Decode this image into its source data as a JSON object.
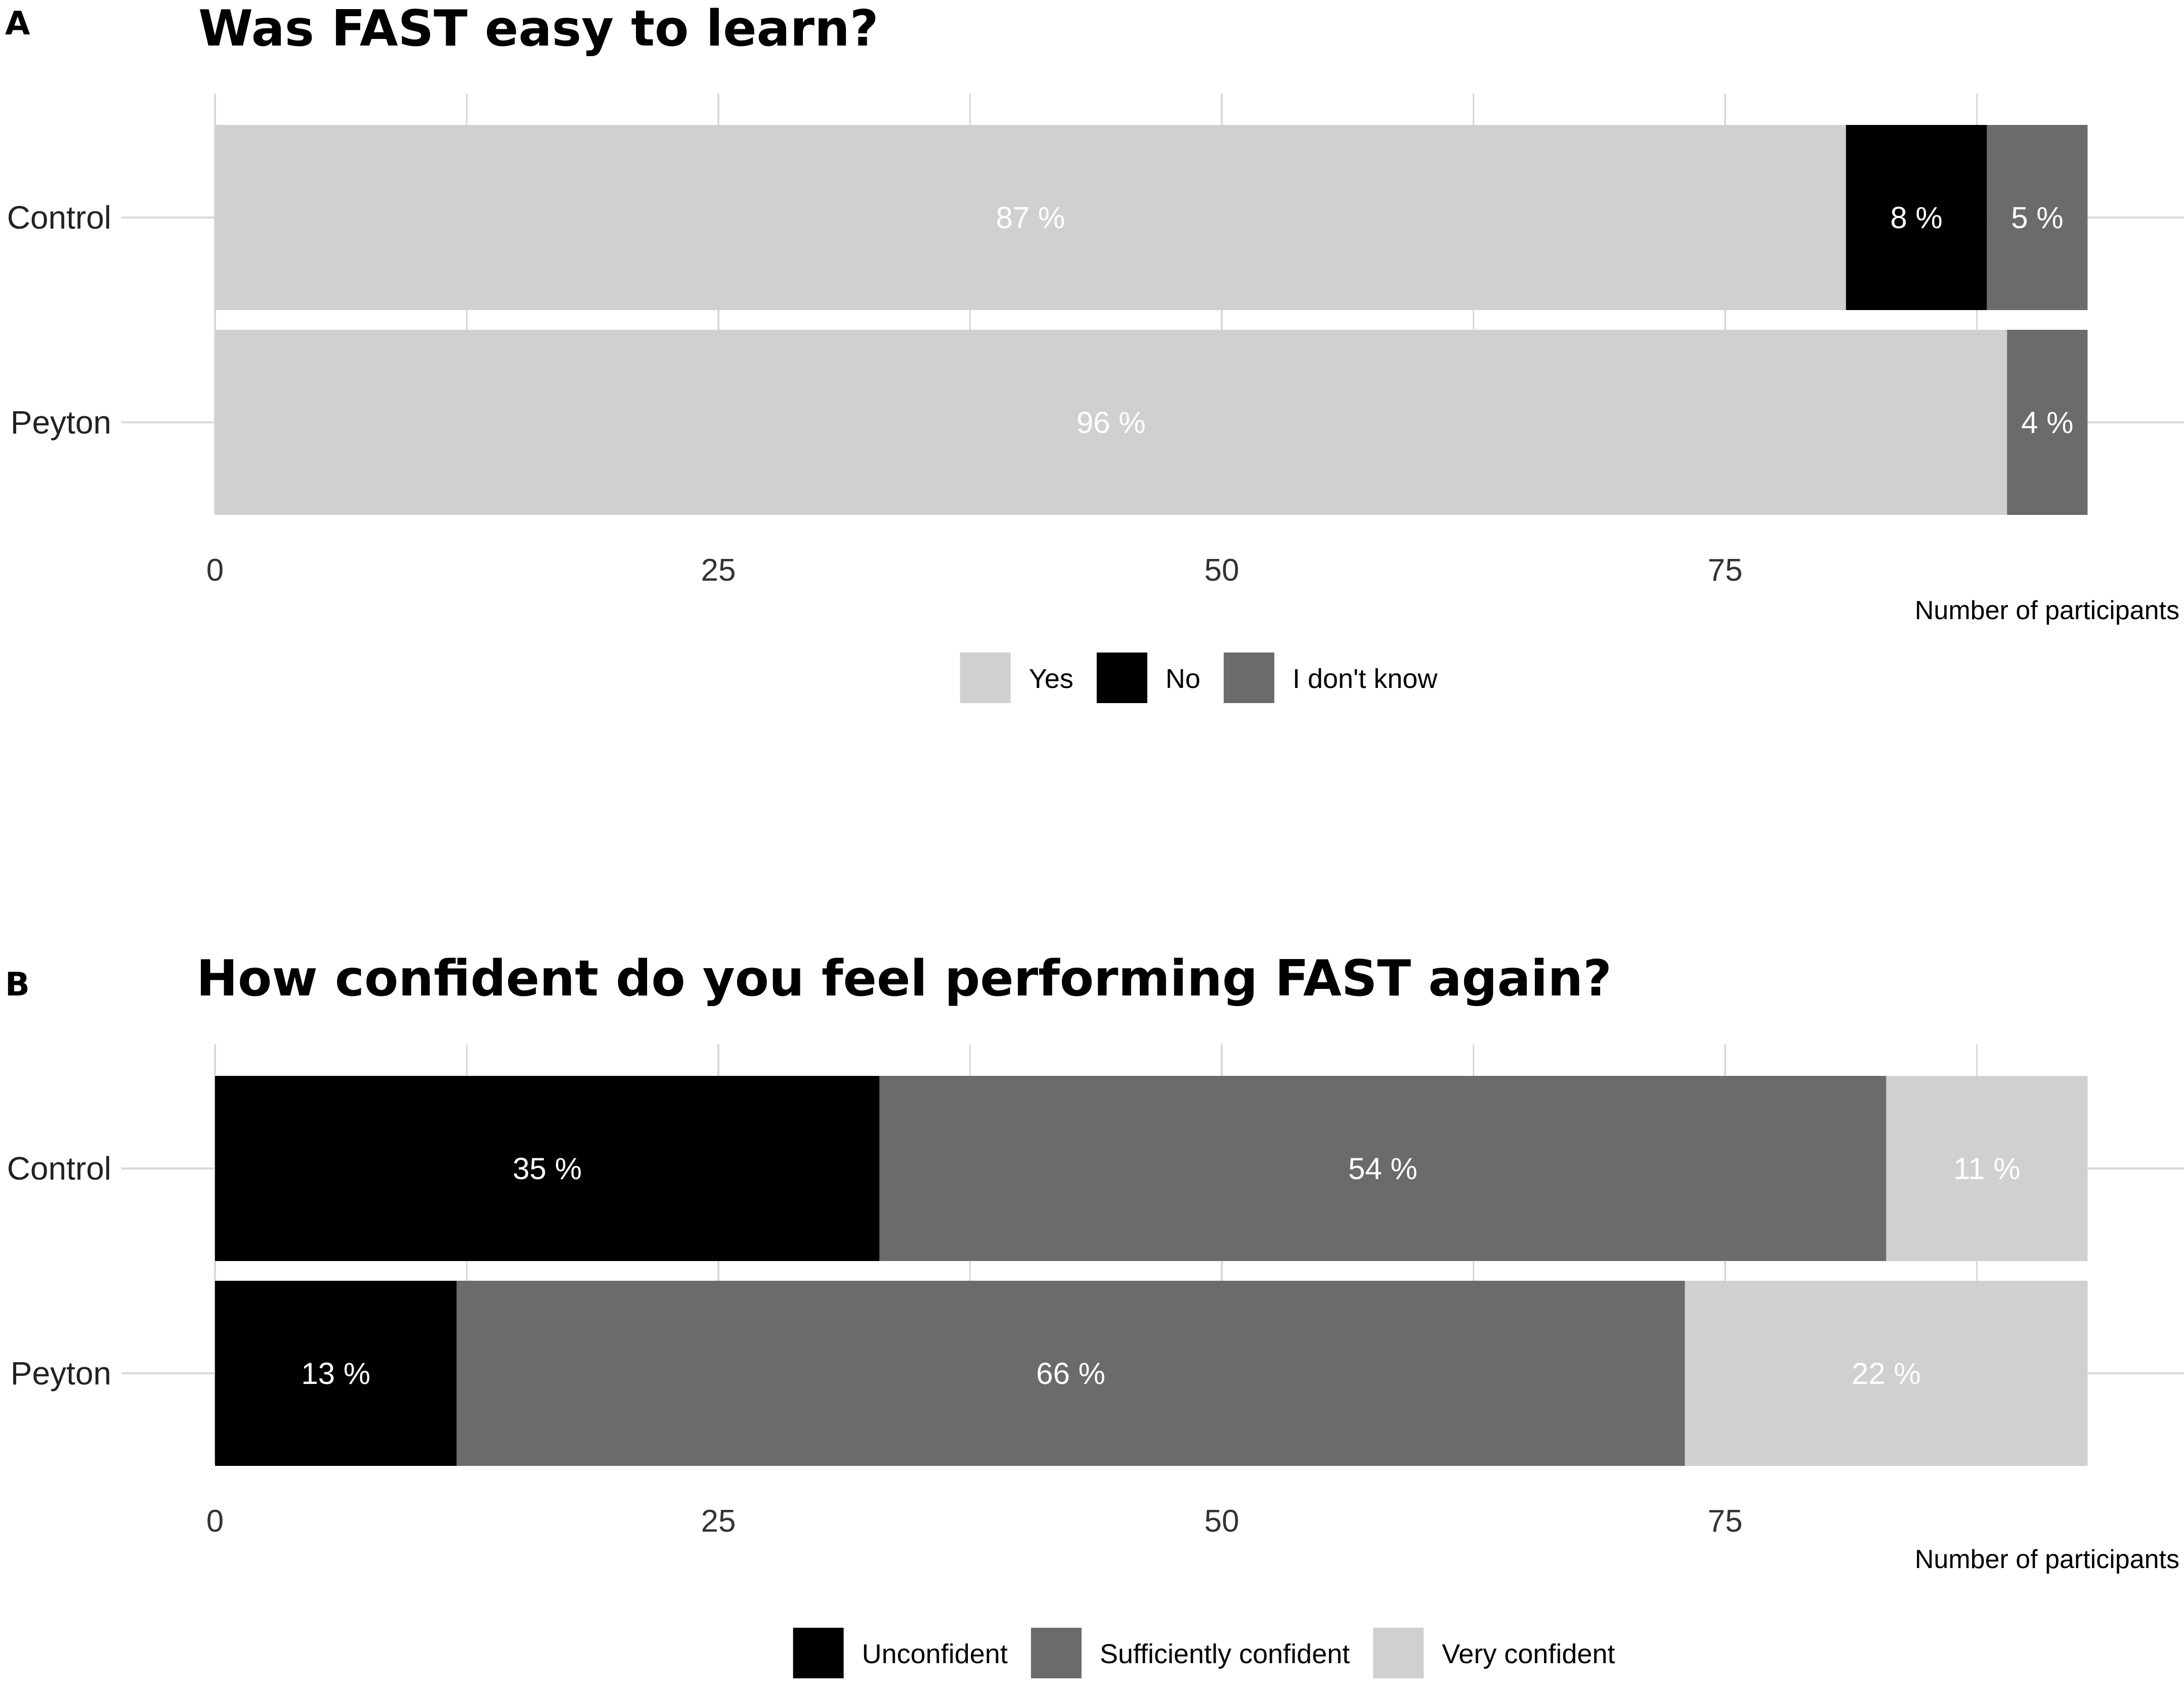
{
  "panels": [
    {
      "letter": "A",
      "title": "Was FAST easy to learn?"
    },
    {
      "letter": "B",
      "title": "How confident do you feel performing FAST again?"
    }
  ],
  "colors": {
    "light": "#d0d0d0",
    "black": "#000000",
    "dark": "#6b6b6b",
    "grid": "#d9d9d9"
  },
  "chart_data": [
    {
      "type": "bar",
      "orientation": "horizontal",
      "stacked": true,
      "title": "Was FAST easy to learn?",
      "xlabel": "Number of participants",
      "ylabel": "",
      "xlim": [
        0,
        93
      ],
      "xticks": [
        0,
        25,
        50,
        75
      ],
      "grid": true,
      "legend_position": "bottom",
      "categories": [
        "Control",
        "Peyton"
      ],
      "series": [
        {
          "name": "Yes",
          "color": "#d0d0d0",
          "label_color": "#ffffff",
          "values": [
            81,
            89
          ],
          "labels": [
            "87 %",
            "96 %"
          ]
        },
        {
          "name": "No",
          "color": "#000000",
          "label_color": "#ffffff",
          "values": [
            7,
            0
          ],
          "labels": [
            "8 %",
            ""
          ]
        },
        {
          "name": "I don't know",
          "color": "#6b6b6b",
          "label_color": "#ffffff",
          "values": [
            5,
            4
          ],
          "labels": [
            "5 %",
            "4 %"
          ]
        }
      ]
    },
    {
      "type": "bar",
      "orientation": "horizontal",
      "stacked": true,
      "title": "How confident do you feel performing FAST again?",
      "xlabel": "Number of participants",
      "ylabel": "",
      "xlim": [
        0,
        93
      ],
      "xticks": [
        0,
        25,
        50,
        75
      ],
      "grid": true,
      "legend_position": "bottom",
      "categories": [
        "Control",
        "Peyton"
      ],
      "series": [
        {
          "name": "Unconfident",
          "color": "#000000",
          "label_color": "#ffffff",
          "values": [
            33,
            12
          ],
          "labels": [
            "35 %",
            "13 %"
          ]
        },
        {
          "name": "Sufficiently confident",
          "color": "#6b6b6b",
          "label_color": "#ffffff",
          "values": [
            50,
            61
          ],
          "labels": [
            "54 %",
            "66 %"
          ]
        },
        {
          "name": "Very confident",
          "color": "#d0d0d0",
          "label_color": "#ffffff",
          "values": [
            10,
            20
          ],
          "labels": [
            "11 %",
            "22 %"
          ]
        }
      ]
    }
  ]
}
